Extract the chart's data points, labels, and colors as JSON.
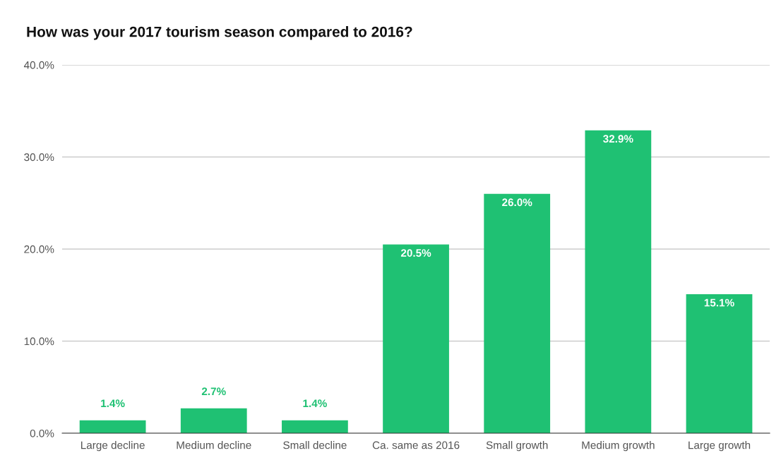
{
  "chart_data": {
    "type": "bar",
    "title": "How was your 2017 tourism season compared to 2016?",
    "categories": [
      "Large decline",
      "Medium decline",
      "Small decline",
      "Ca. same as 2016",
      "Small growth",
      "Medium growth",
      "Large growth"
    ],
    "values": [
      1.4,
      2.7,
      1.4,
      20.5,
      26.0,
      32.9,
      15.1
    ],
    "value_labels": [
      "1.4%",
      "2.7%",
      "1.4%",
      "20.5%",
      "26.0%",
      "32.9%",
      "15.1%"
    ],
    "color": "#1fc173",
    "ylim": [
      0,
      40
    ],
    "yticks": [
      {
        "value": 0,
        "label": "0.0%"
      },
      {
        "value": 10,
        "label": "10.0%"
      },
      {
        "value": 20,
        "label": "20.0%"
      },
      {
        "value": 30,
        "label": "30.0%"
      },
      {
        "value": 40,
        "label": "40.0%"
      }
    ],
    "grid": "y",
    "legend": false
  }
}
